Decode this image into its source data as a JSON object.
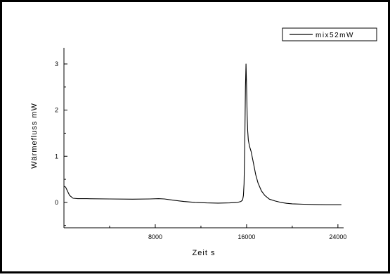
{
  "chart_data": {
    "type": "line",
    "title": "",
    "xlabel": "Zeit s",
    "ylabel": "Wärmefluss mW",
    "xlim": [
      0,
      24500
    ],
    "ylim": [
      -0.55,
      3.35
    ],
    "x_ticks": [
      {
        "value": 8000,
        "label": "8000"
      },
      {
        "value": 16000,
        "label": "16000"
      },
      {
        "value": 24000,
        "label": "24000"
      }
    ],
    "y_ticks": [
      {
        "value": 0,
        "label": "0"
      },
      {
        "value": 1,
        "label": "1"
      },
      {
        "value": 2,
        "label": "2"
      },
      {
        "value": 3,
        "label": "3"
      }
    ],
    "grid": false,
    "legend_position": "top-right",
    "series": [
      {
        "name": "mix52mW",
        "color": "#000000",
        "x": [
          0,
          150,
          300,
          500,
          800,
          1200,
          2000,
          4000,
          6000,
          7500,
          8300,
          8800,
          9500,
          10500,
          11500,
          12500,
          13500,
          14500,
          15200,
          15500,
          15650,
          15720,
          15780,
          15840,
          15900,
          15950,
          16000,
          16050,
          16100,
          16150,
          16250,
          16400,
          16600,
          16800,
          17000,
          17300,
          17600,
          18000,
          18500,
          19000,
          19500,
          20000,
          21000,
          22000,
          23000,
          24000,
          24300
        ],
        "y": [
          0.35,
          0.33,
          0.25,
          0.15,
          0.09,
          0.08,
          0.08,
          0.075,
          0.07,
          0.075,
          0.08,
          0.075,
          0.05,
          0.02,
          0.0,
          -0.01,
          -0.015,
          -0.01,
          0.0,
          0.02,
          0.05,
          0.15,
          0.4,
          1.2,
          2.5,
          3.0,
          2.5,
          1.9,
          1.55,
          1.35,
          1.22,
          1.1,
          0.85,
          0.6,
          0.42,
          0.25,
          0.15,
          0.07,
          0.03,
          0.0,
          -0.02,
          -0.03,
          -0.04,
          -0.045,
          -0.05,
          -0.05,
          -0.05
        ]
      }
    ]
  }
}
